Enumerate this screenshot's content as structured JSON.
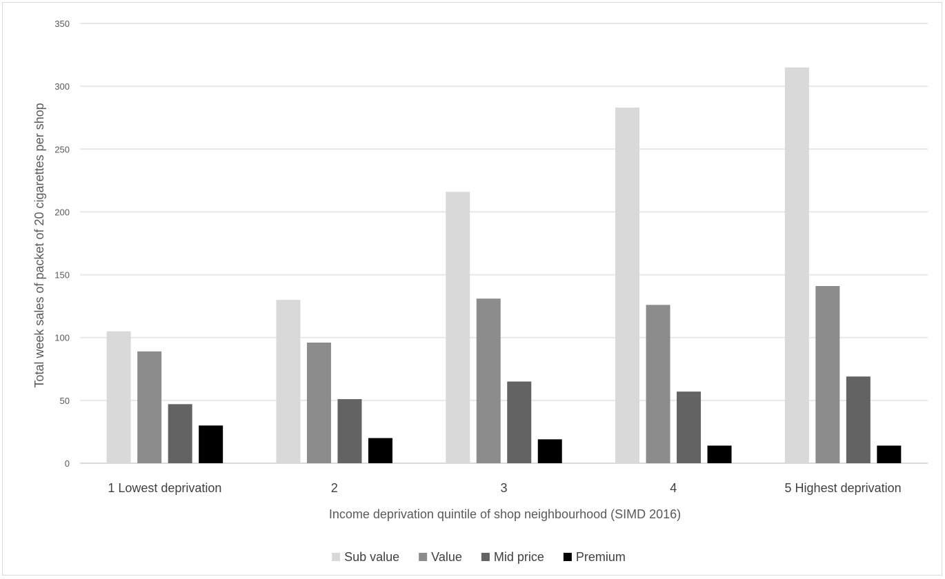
{
  "chart_data": {
    "type": "bar",
    "title": "",
    "xlabel": "Income deprivation quintile of shop neighbourhood (SIMD 2016)",
    "ylabel": "Total week sales of packet of 20 cigarettes per shop",
    "ylim": [
      0,
      350
    ],
    "yticks": [
      0,
      50,
      100,
      150,
      200,
      250,
      300,
      350
    ],
    "grid": true,
    "legend_position": "bottom",
    "categories": [
      "1 Lowest deprivation",
      "2",
      "3",
      "4",
      "5 Highest deprivation"
    ],
    "series": [
      {
        "name": "Sub value",
        "color": "#d9d9d9",
        "values": [
          105,
          130,
          216,
          283,
          315
        ]
      },
      {
        "name": "Value",
        "color": "#8c8c8c",
        "values": [
          89,
          96,
          131,
          126,
          141
        ]
      },
      {
        "name": "Mid price",
        "color": "#636363",
        "values": [
          47,
          51,
          65,
          57,
          69
        ]
      },
      {
        "name": "Premium",
        "color": "#000000",
        "values": [
          30,
          20,
          19,
          14,
          14
        ]
      }
    ]
  }
}
